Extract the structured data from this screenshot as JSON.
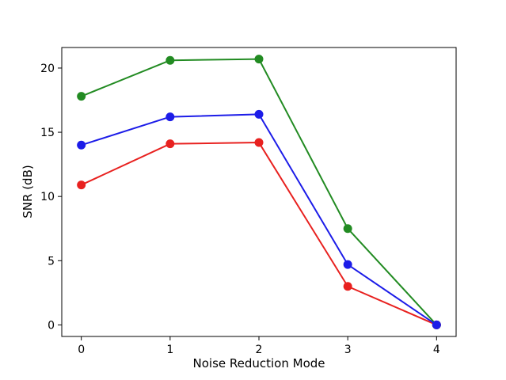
{
  "figure": {
    "background": "#ffffff"
  },
  "chart_data": {
    "type": "line",
    "title": "",
    "xlabel": "Noise Reduction Mode",
    "ylabel": "SNR (dB)",
    "x": [
      0,
      1,
      2,
      3,
      4
    ],
    "series": [
      {
        "name": "green",
        "color": "#228b22",
        "marker": "circle",
        "values": [
          17.8,
          20.6,
          20.7,
          7.5,
          0.0
        ]
      },
      {
        "name": "red",
        "color": "#e8211f",
        "marker": "circle",
        "values": [
          10.9,
          14.1,
          14.2,
          3.0,
          0.0
        ]
      },
      {
        "name": "blue",
        "color": "#1c1ce8",
        "marker": "circle",
        "values": [
          14.0,
          16.2,
          16.4,
          4.7,
          0.0
        ]
      }
    ],
    "xticks": [
      0,
      1,
      2,
      3,
      4
    ],
    "yticks": [
      0,
      5,
      10,
      15,
      20
    ],
    "xlim": [
      -0.22,
      4.22
    ],
    "ylim": [
      -0.9,
      21.6
    ],
    "grid": false,
    "legend": false,
    "axis_color": "#000000",
    "line_width": 2,
    "marker_radius": 5.5
  }
}
